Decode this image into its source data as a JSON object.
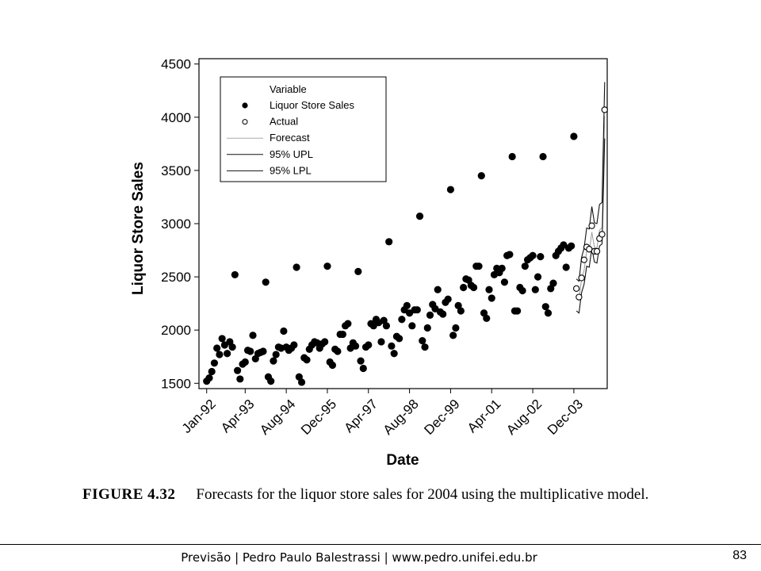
{
  "chart_data": {
    "type": "scatter",
    "xlabel": "Date",
    "ylabel": "Liquor Store Sales",
    "ylim": [
      1450,
      4550
    ],
    "y_ticks": [
      1500,
      2000,
      2500,
      3000,
      3500,
      4000,
      4500
    ],
    "x_tick_labels": [
      "Jan-92",
      "Apr-93",
      "Aug-94",
      "Dec-95",
      "Apr-97",
      "Aug-98",
      "Dec-99",
      "Apr-01",
      "Aug-02",
      "Dec-03"
    ],
    "x_tick_months": [
      0,
      15,
      31,
      47,
      63,
      79,
      95,
      111,
      127,
      143
    ],
    "xlim": [
      -3,
      156
    ],
    "legend": {
      "title": "Variable",
      "position": "top-left",
      "entries": [
        "Liquor Store Sales",
        "Actual",
        "Forecast",
        "95% UPL",
        "95% LPL"
      ]
    },
    "series": [
      {
        "name": "Liquor Store Sales",
        "marker": "filled-circle",
        "x": [
          0,
          1,
          2,
          3,
          4,
          5,
          6,
          7,
          8,
          9,
          10,
          11,
          12,
          13,
          14,
          15,
          16,
          17,
          18,
          19,
          20,
          21,
          22,
          23,
          24,
          25,
          26,
          27,
          28,
          29,
          30,
          31,
          32,
          33,
          34,
          35,
          36,
          37,
          38,
          39,
          40,
          41,
          42,
          43,
          44,
          45,
          46,
          47,
          48,
          49,
          50,
          51,
          52,
          53,
          54,
          55,
          56,
          57,
          58,
          59,
          60,
          61,
          62,
          63,
          64,
          65,
          66,
          67,
          68,
          69,
          70,
          71,
          72,
          73,
          74,
          75,
          76,
          77,
          78,
          79,
          80,
          81,
          82,
          83,
          84,
          85,
          86,
          87,
          88,
          89,
          90,
          91,
          92,
          93,
          94,
          95,
          96,
          97,
          98,
          99,
          100,
          101,
          102,
          103,
          104,
          105,
          106,
          107,
          108,
          109,
          110,
          111,
          112,
          113,
          114,
          115,
          116,
          117,
          118,
          119,
          120,
          121,
          122,
          123,
          124,
          125,
          126,
          127,
          128,
          129,
          130,
          131,
          132,
          133,
          134,
          135,
          136,
          137,
          138,
          139,
          140,
          141,
          142,
          143
        ],
        "y": [
          1520,
          1550,
          1610,
          1690,
          1830,
          1770,
          1920,
          1860,
          1780,
          1890,
          1840,
          2520,
          1620,
          1540,
          1680,
          1700,
          1810,
          1800,
          1950,
          1730,
          1780,
          1790,
          1800,
          2450,
          1560,
          1520,
          1710,
          1770,
          1840,
          1830,
          1990,
          1840,
          1810,
          1830,
          1860,
          2590,
          1560,
          1510,
          1740,
          1720,
          1820,
          1860,
          1890,
          1880,
          1830,
          1870,
          1890,
          2600,
          1700,
          1670,
          1820,
          1800,
          1960,
          1960,
          2040,
          2060,
          1830,
          1880,
          1850,
          2550,
          1710,
          1640,
          1840,
          1860,
          2060,
          2040,
          2100,
          2070,
          1890,
          2090,
          2040,
          2830,
          1850,
          1780,
          1940,
          1920,
          2100,
          2190,
          2230,
          2160,
          2040,
          2190,
          2190,
          3070,
          1900,
          1840,
          2020,
          2140,
          2240,
          2200,
          2380,
          2170,
          2150,
          2260,
          2290,
          3320,
          1950,
          2020,
          2230,
          2180,
          2400,
          2480,
          2470,
          2420,
          2400,
          2600,
          2600,
          3450,
          2160,
          2110,
          2380,
          2300,
          2520,
          2580,
          2540,
          2580,
          2450,
          2700,
          2710,
          3630,
          2180,
          2180,
          2400,
          2370,
          2600,
          2660,
          2680,
          2700,
          2380,
          2500,
          2690,
          3630,
          2220,
          2160,
          2390,
          2440,
          2700,
          2740,
          2770,
          2800,
          2590,
          2770,
          2790,
          3820
        ]
      },
      {
        "name": "Actual",
        "marker": "open-circle",
        "x": [
          144,
          145,
          146,
          147,
          148,
          149,
          150,
          151,
          152,
          153,
          154,
          155
        ],
        "y": [
          2390,
          2310,
          2490,
          2660,
          2780,
          2760,
          2980,
          2740,
          2740,
          2860,
          2900,
          4070
        ]
      },
      {
        "name": "Forecast",
        "line": "thin-gray",
        "x": [
          144,
          145,
          146,
          147,
          148,
          149,
          150,
          151,
          152,
          153,
          154,
          155
        ],
        "y": [
          2300,
          2280,
          2480,
          2560,
          2740,
          2730,
          2920,
          2780,
          2770,
          2940,
          2960,
          4010
        ]
      },
      {
        "name": "95% UPL",
        "line": "dark",
        "x": [
          144,
          145,
          146,
          147,
          148,
          149,
          150,
          151,
          152,
          153,
          154,
          155
        ],
        "y": [
          2480,
          2460,
          2680,
          2770,
          2960,
          2950,
          3160,
          3010,
          3000,
          3180,
          3200,
          4330
        ]
      },
      {
        "name": "95% LPL",
        "line": "dark",
        "x": [
          144,
          145,
          146,
          147,
          148,
          149,
          150,
          151,
          152,
          153,
          154,
          155
        ],
        "y": [
          2180,
          2160,
          2350,
          2430,
          2600,
          2590,
          2770,
          2640,
          2630,
          2790,
          2810,
          3800
        ]
      }
    ]
  },
  "caption": {
    "label": "FIGURE 4.32",
    "text": "Forecasts for the liquor store sales for 2004 using the multiplicative model."
  },
  "footer": {
    "text": "Previsão | Pedro Paulo Balestrassi | www.pedro.unifei.edu.br",
    "page_number": "83"
  }
}
